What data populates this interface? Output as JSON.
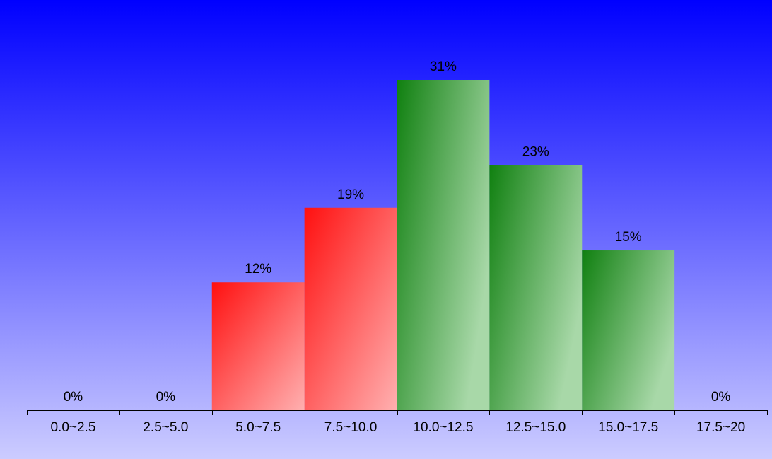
{
  "colors": {
    "background_top": "#0000ff",
    "background_bottom": "#ccccff",
    "low_bar": "#ff1010",
    "low_bar_light": "#ffb0b0",
    "high_bar": "#108010",
    "high_bar_light": "#a8d8a8",
    "axis": "#000000"
  },
  "chart_data": {
    "type": "bar",
    "title": "",
    "xlabel": "",
    "ylabel": "",
    "categories": [
      "0.0~2.5",
      "2.5~5.0",
      "5.0~7.5",
      "7.5~10.0",
      "10.0~12.5",
      "12.5~15.0",
      "15.0~17.5",
      "17.5~20"
    ],
    "values": [
      0,
      0,
      12,
      19,
      31,
      23,
      15,
      0
    ],
    "value_labels": [
      "0%",
      "0%",
      "12%",
      "19%",
      "31%",
      "23%",
      "15%",
      "0%"
    ],
    "value_unit": "%",
    "bar_colors": [
      "red",
      "red",
      "red",
      "red",
      "green",
      "green",
      "green",
      "green"
    ],
    "ylim": [
      0,
      40
    ],
    "grid": false,
    "legend": "none"
  }
}
